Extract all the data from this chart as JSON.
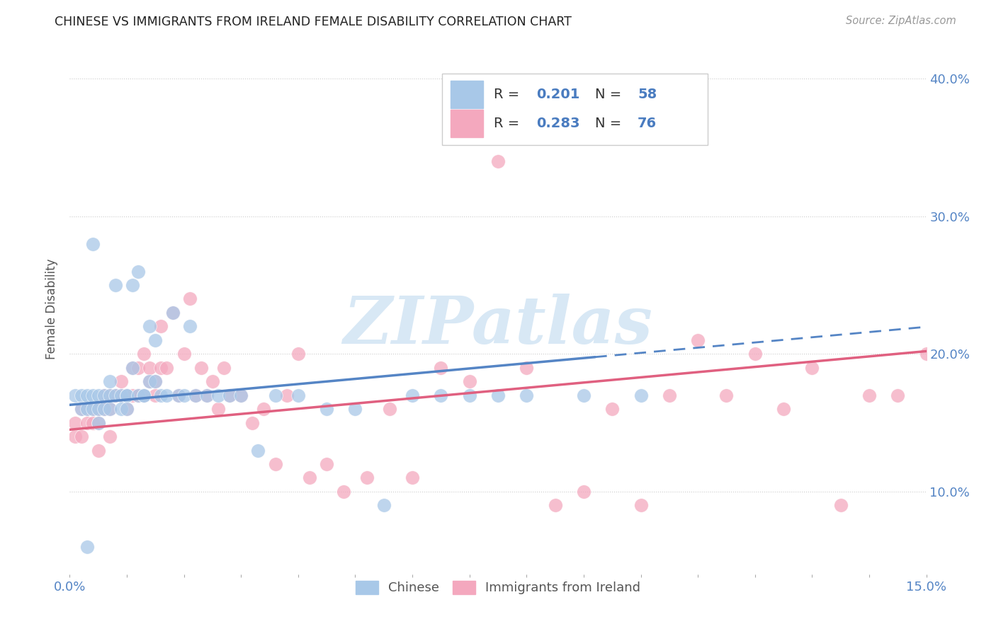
{
  "title": "CHINESE VS IMMIGRANTS FROM IRELAND FEMALE DISABILITY CORRELATION CHART",
  "source": "Source: ZipAtlas.com",
  "ylabel": "Female Disability",
  "xlim": [
    0.0,
    0.15
  ],
  "ylim": [
    0.04,
    0.425
  ],
  "legend_labels": [
    "Chinese",
    "Immigrants from Ireland"
  ],
  "R_chinese": "0.201",
  "N_chinese": "58",
  "R_ireland": "0.283",
  "N_ireland": "76",
  "color_chinese": "#a8c8e8",
  "color_ireland": "#f4a8be",
  "line_color_chinese": "#5585c5",
  "line_color_ireland": "#e06080",
  "text_color_blue": "#4a7cc0",
  "watermark_color": "#d8e8f5",
  "title_color": "#222222",
  "source_color": "#999999",
  "ylabel_color": "#555555",
  "tick_color": "#5585c5",
  "grid_color": "#cccccc",
  "legend_edge_color": "#cccccc"
}
